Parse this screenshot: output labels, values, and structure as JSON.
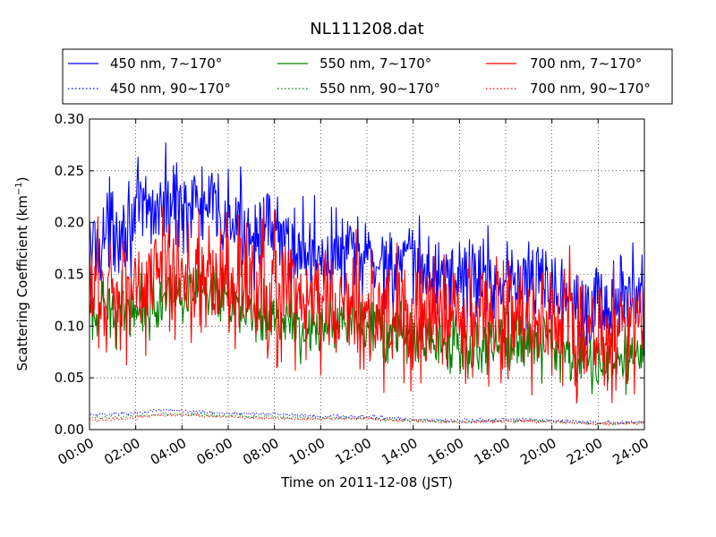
{
  "chart_data": {
    "type": "line",
    "title": "NL111208.dat",
    "xlabel": "Time on 2011-12-08 (JST)",
    "ylabel_main": "Scattering Coefficient (km",
    "ylabel_sup": "−1",
    "ylabel_tail": ")",
    "xlim": [
      "00:00",
      "24:00"
    ],
    "ylim": [
      0,
      0.3
    ],
    "x_ticks": [
      "00:00",
      "02:00",
      "04:00",
      "06:00",
      "08:00",
      "10:00",
      "12:00",
      "14:00",
      "16:00",
      "18:00",
      "20:00",
      "22:00",
      "24:00"
    ],
    "y_ticks": [
      "0.00",
      "0.05",
      "0.10",
      "0.15",
      "0.20",
      "0.25",
      "0.30"
    ],
    "grid": true,
    "legend_position": "top, above plot, 3 columns",
    "x_hours_key": [
      0,
      2,
      4,
      6,
      8,
      10,
      12,
      14,
      16,
      18,
      20,
      22,
      24
    ],
    "series": [
      {
        "name": "450 nm, 7∼170°",
        "color": "#0000ff",
        "style": "solid",
        "hours": [
          0,
          1,
          2,
          3,
          4,
          5,
          6,
          7,
          8,
          9,
          10,
          11,
          12,
          13,
          14,
          15,
          16,
          17,
          18,
          19,
          20,
          21,
          22,
          23,
          24
        ],
        "values": [
          0.175,
          0.195,
          0.205,
          0.215,
          0.22,
          0.215,
          0.2,
          0.195,
          0.185,
          0.175,
          0.17,
          0.168,
          0.165,
          0.16,
          0.155,
          0.15,
          0.145,
          0.148,
          0.145,
          0.142,
          0.14,
          0.13,
          0.12,
          0.125,
          0.13
        ],
        "noise": 0.022
      },
      {
        "name": "550 nm, 7∼170°",
        "color": "#008000",
        "style": "solid",
        "hours": [
          0,
          1,
          2,
          3,
          4,
          5,
          6,
          7,
          8,
          9,
          10,
          11,
          12,
          13,
          14,
          15,
          16,
          17,
          18,
          19,
          20,
          21,
          22,
          23,
          24
        ],
        "values": [
          0.105,
          0.115,
          0.12,
          0.13,
          0.135,
          0.13,
          0.12,
          0.118,
          0.11,
          0.1,
          0.095,
          0.098,
          0.1,
          0.095,
          0.09,
          0.085,
          0.08,
          0.083,
          0.085,
          0.085,
          0.085,
          0.07,
          0.065,
          0.065,
          0.075
        ],
        "noise": 0.015
      },
      {
        "name": "700 nm, 7∼170°",
        "color": "#ff0000",
        "style": "solid",
        "hours": [
          0,
          1,
          2,
          3,
          4,
          5,
          6,
          7,
          8,
          9,
          10,
          11,
          12,
          13,
          14,
          15,
          16,
          17,
          18,
          19,
          20,
          21,
          22,
          23,
          24
        ],
        "values": [
          0.13,
          0.135,
          0.14,
          0.15,
          0.155,
          0.15,
          0.14,
          0.135,
          0.13,
          0.125,
          0.12,
          0.12,
          0.115,
          0.11,
          0.105,
          0.11,
          0.105,
          0.11,
          0.105,
          0.105,
          0.105,
          0.095,
          0.09,
          0.095,
          0.11
        ],
        "noise": 0.032
      },
      {
        "name": "450 nm, 90∼170°",
        "color": "#0000ff",
        "style": "dotted",
        "hours": [
          0,
          1,
          2,
          3,
          4,
          5,
          6,
          7,
          8,
          9,
          10,
          11,
          12,
          13,
          14,
          15,
          16,
          17,
          18,
          19,
          20,
          21,
          22,
          23,
          24
        ],
        "values": [
          0.014,
          0.015,
          0.016,
          0.019,
          0.018,
          0.017,
          0.016,
          0.0155,
          0.015,
          0.014,
          0.013,
          0.013,
          0.0125,
          0.011,
          0.01,
          0.009,
          0.0085,
          0.009,
          0.0095,
          0.0095,
          0.009,
          0.008,
          0.007,
          0.007,
          0.008
        ],
        "noise": 0.0008
      },
      {
        "name": "550 nm, 90∼170°",
        "color": "#008000",
        "style": "dotted",
        "hours": [
          0,
          1,
          2,
          3,
          4,
          5,
          6,
          7,
          8,
          9,
          10,
          11,
          12,
          13,
          14,
          15,
          16,
          17,
          18,
          19,
          20,
          21,
          22,
          23,
          24
        ],
        "values": [
          0.011,
          0.012,
          0.013,
          0.015,
          0.015,
          0.014,
          0.013,
          0.0125,
          0.012,
          0.011,
          0.011,
          0.011,
          0.011,
          0.0095,
          0.009,
          0.008,
          0.0075,
          0.008,
          0.0085,
          0.0085,
          0.008,
          0.007,
          0.006,
          0.006,
          0.007
        ],
        "noise": 0.0007
      },
      {
        "name": "700 nm, 90∼170°",
        "color": "#ff0000",
        "style": "dotted",
        "hours": [
          0,
          1,
          2,
          3,
          4,
          5,
          6,
          7,
          8,
          9,
          10,
          11,
          12,
          13,
          14,
          15,
          16,
          17,
          18,
          19,
          20,
          21,
          22,
          23,
          24
        ],
        "values": [
          0.009,
          0.01,
          0.011,
          0.014,
          0.014,
          0.013,
          0.012,
          0.0115,
          0.011,
          0.0105,
          0.0105,
          0.0105,
          0.011,
          0.009,
          0.0085,
          0.0075,
          0.007,
          0.0075,
          0.008,
          0.008,
          0.0075,
          0.0065,
          0.0055,
          0.0055,
          0.0065
        ],
        "noise": 0.0006
      }
    ]
  }
}
